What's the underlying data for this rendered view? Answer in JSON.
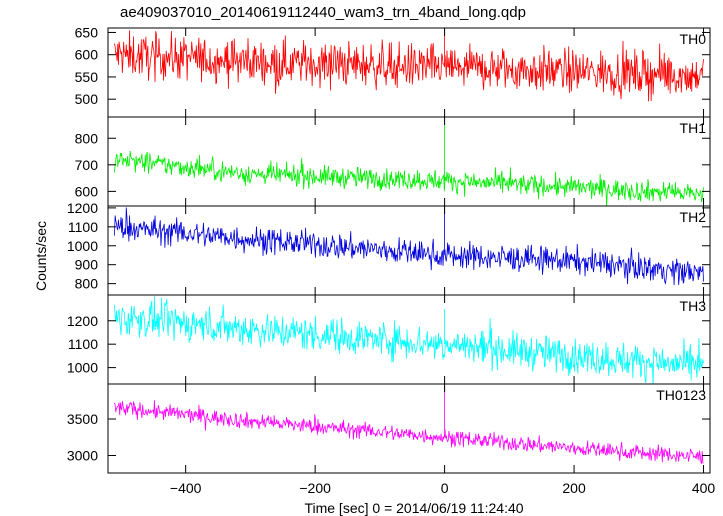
{
  "title": "ae409037010_20140619112440_wam3_trn_4band_long.qdp",
  "chart_data": {
    "type": "line",
    "title": "ae409037010_20140619112440_wam3_trn_4band_long.qdp",
    "xlabel": "Time [sec] 0 = 2014/06/19 11:24:40",
    "ylabel": "Counts/sec",
    "xlim": [
      -520,
      410
    ],
    "x_ticks": [
      -400,
      -200,
      0,
      200,
      400
    ],
    "x_tick_labels": [
      "−400",
      "−200",
      "0",
      "200",
      "400"
    ],
    "grid": false,
    "panels": [
      {
        "name": "TH0",
        "color": "#ff0000",
        "ylim": [
          460,
          660
        ],
        "y_ticks": [
          500,
          550,
          600,
          650
        ],
        "trend": [
          [
            -510,
            600
          ],
          [
            -300,
            585
          ],
          [
            0,
            572
          ],
          [
            200,
            562
          ],
          [
            400,
            553
          ]
        ],
        "noise": 25,
        "spike": {
          "x": 0,
          "y": 660
        }
      },
      {
        "name": "TH1",
        "color": "#00ee00",
        "ylim": [
          545,
          880
        ],
        "y_ticks": [
          600,
          700,
          800
        ],
        "trend": [
          [
            -510,
            720
          ],
          [
            -300,
            665
          ],
          [
            0,
            640
          ],
          [
            200,
            615
          ],
          [
            400,
            590
          ]
        ],
        "noise": 20,
        "spike": {
          "x": 0,
          "y": 875
        }
      },
      {
        "name": "TH2",
        "color": "#0000dd",
        "ylim": [
          740,
          1210
        ],
        "y_ticks": [
          800,
          900,
          1000,
          1100,
          1200
        ],
        "trend": [
          [
            -510,
            1100
          ],
          [
            -300,
            1035
          ],
          [
            0,
            950
          ],
          [
            200,
            920
          ],
          [
            400,
            855
          ]
        ],
        "noise": 35,
        "spike": {
          "x": 0,
          "y": 1200
        }
      },
      {
        "name": "TH3",
        "color": "#00ffff",
        "ylim": [
          930,
          1310
        ],
        "y_ticks": [
          1000,
          1100,
          1200
        ],
        "trend": [
          [
            -510,
            1215
          ],
          [
            -300,
            1165
          ],
          [
            0,
            1100
          ],
          [
            200,
            1050
          ],
          [
            400,
            1005
          ]
        ],
        "noise": 38,
        "spike": {
          "x": 0,
          "y": 1250
        }
      },
      {
        "name": "TH0123",
        "color": "#ff00ff",
        "ylim": [
          2760,
          3980
        ],
        "y_ticks": [
          3000,
          3500
        ],
        "trend": [
          [
            -510,
            3660
          ],
          [
            -300,
            3470
          ],
          [
            0,
            3250
          ],
          [
            200,
            3100
          ],
          [
            400,
            2980
          ]
        ],
        "noise": 55,
        "spike": {
          "x": 0,
          "y": 3950
        }
      }
    ]
  }
}
